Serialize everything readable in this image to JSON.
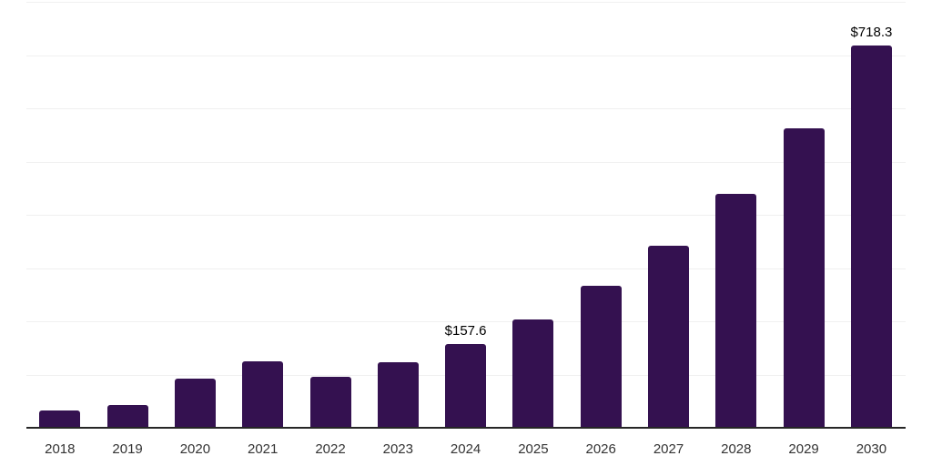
{
  "chart_data": {
    "type": "bar",
    "categories": [
      "2018",
      "2019",
      "2020",
      "2021",
      "2022",
      "2023",
      "2024",
      "2025",
      "2026",
      "2027",
      "2028",
      "2029",
      "2030"
    ],
    "values": [
      32.5,
      42.8,
      92,
      124,
      96,
      123,
      157.6,
      204,
      266,
      342,
      440,
      563,
      718.3
    ],
    "data_labels": [
      {
        "index": 6,
        "text": "$157.6"
      },
      {
        "index": 12,
        "text": "$718.3"
      }
    ],
    "title": "",
    "xlabel": "",
    "ylabel": "",
    "ylim": [
      0,
      800
    ],
    "grid_interval": 100,
    "grid": "horizontal-only",
    "y_tick_labels_visible": false,
    "legend_position": "none"
  },
  "colors": {
    "background": "#ffffff",
    "bar_fill": "#341150",
    "gridline": "#f0f0f0",
    "axis_line": "#262626",
    "tick_label": "#333333",
    "data_label": "#000000"
  }
}
